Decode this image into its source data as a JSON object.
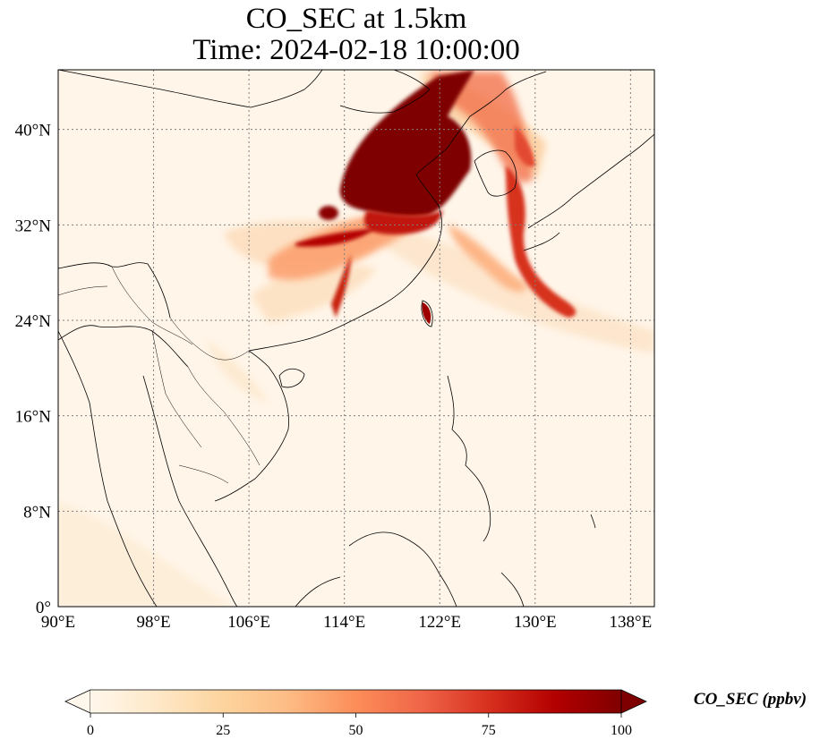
{
  "title": {
    "line1": "CO_SEC at 1.5km",
    "line2": "Time: 2024-02-18 10:00:00"
  },
  "map": {
    "extent": {
      "lon": [
        90,
        140
      ],
      "lat": [
        0,
        45
      ]
    },
    "gridlines": {
      "style": "dotted",
      "color": "#808080"
    },
    "lon_ticks": [
      {
        "value": 90,
        "label": "90°E"
      },
      {
        "value": 98,
        "label": "98°E"
      },
      {
        "value": 106,
        "label": "106°E"
      },
      {
        "value": 114,
        "label": "114°E"
      },
      {
        "value": 122,
        "label": "122°E"
      },
      {
        "value": 130,
        "label": "130°E"
      },
      {
        "value": 138,
        "label": "138°E"
      }
    ],
    "lat_ticks": [
      {
        "value": 0,
        "label": "0°"
      },
      {
        "value": 8,
        "label": "8°N"
      },
      {
        "value": 16,
        "label": "16°N"
      },
      {
        "value": 24,
        "label": "24°N"
      },
      {
        "value": 32,
        "label": "32°N"
      },
      {
        "value": 40,
        "label": "40°N"
      }
    ]
  },
  "colorbar": {
    "label": "CO_SEC (ppbv)",
    "cmap": "OrRd",
    "min": 0,
    "max": 100,
    "extend": "both",
    "ticks": [
      {
        "value": 0,
        "label": "0"
      },
      {
        "value": 25,
        "label": "25"
      },
      {
        "value": 50,
        "label": "50"
      },
      {
        "value": 75,
        "label": "75"
      },
      {
        "value": 100,
        "label": "100"
      }
    ]
  }
}
